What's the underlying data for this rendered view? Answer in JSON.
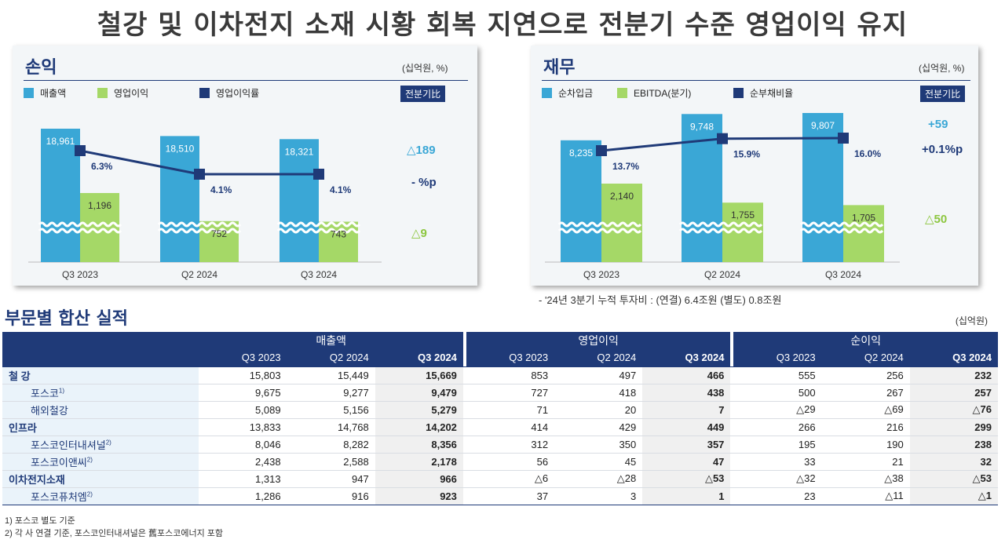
{
  "headline": "철강 및 이차전지 소재 시황 회복 지연으로 전분기 수준 영업이익 유지",
  "left_panel": {
    "title": "손익",
    "unit": "(십억원, %)",
    "badge": "전분기比",
    "legend": [
      "매출액",
      "영업이익",
      "영업이익률"
    ],
    "changes": [
      "△189",
      "- %p",
      "△9"
    ]
  },
  "right_panel": {
    "title": "재무",
    "unit": "(십억원, %)",
    "badge": "전분기比",
    "legend": [
      "순차입금",
      "EBITDA(분기)",
      "순부채비율"
    ],
    "changes": [
      "+59",
      "+0.1%p",
      "△50"
    ],
    "note": "- '24년 3분기 누적 투자비 : (연결) 6.4조원  (별도) 0.8조원"
  },
  "chart_data": [
    {
      "type": "bar",
      "title": "손익",
      "categories": [
        "Q3 2023",
        "Q2 2024",
        "Q3 2024"
      ],
      "series": [
        {
          "name": "매출액",
          "values": [
            18961,
            18510,
            18321
          ],
          "labels": [
            "18,961",
            "18,510",
            "18,321"
          ],
          "color": "#3aa7d6"
        },
        {
          "name": "영업이익",
          "values": [
            1196,
            752,
            743
          ],
          "labels": [
            "1,196",
            "752",
            "743"
          ],
          "color": "#a5d867"
        },
        {
          "name": "영업이익률",
          "values": [
            6.3,
            4.1,
            4.1
          ],
          "labels": [
            "6.3%",
            "4.1%",
            "4.1%"
          ],
          "color": "#1f3a78",
          "kind": "line"
        }
      ],
      "axis_break": true
    },
    {
      "type": "bar",
      "title": "재무",
      "categories": [
        "Q3 2023",
        "Q2 2024",
        "Q3 2024"
      ],
      "series": [
        {
          "name": "순차입금",
          "values": [
            8235,
            9748,
            9807
          ],
          "labels": [
            "8,235",
            "9,748",
            "9,807"
          ],
          "color": "#3aa7d6"
        },
        {
          "name": "EBITDA(분기)",
          "values": [
            2140,
            1755,
            1705
          ],
          "labels": [
            "2,140",
            "1,755",
            "1,705"
          ],
          "color": "#a5d867"
        },
        {
          "name": "순부채비율",
          "values": [
            13.7,
            15.9,
            16.0
          ],
          "labels": [
            "13.7%",
            "15.9%",
            "16.0%"
          ],
          "color": "#1f3a78",
          "kind": "line"
        }
      ],
      "axis_break": true
    }
  ],
  "section": {
    "title": "부문별 합산 실적",
    "unit": "(십억원)"
  },
  "table": {
    "groups": [
      "매출액",
      "영업이익",
      "순이익"
    ],
    "periods": [
      "Q3 2023",
      "Q2 2024",
      "Q3 2024"
    ],
    "rows": [
      {
        "label": "철 강",
        "sup": "",
        "main": true,
        "values": [
          "15,803",
          "15,449",
          "15,669",
          "853",
          "497",
          "466",
          "555",
          "256",
          "232"
        ]
      },
      {
        "label": "포스코",
        "sup": "1)",
        "main": false,
        "values": [
          "9,675",
          "9,277",
          "9,479",
          "727",
          "418",
          "438",
          "500",
          "267",
          "257"
        ]
      },
      {
        "label": "해외철강",
        "sup": "",
        "main": false,
        "values": [
          "5,089",
          "5,156",
          "5,279",
          "71",
          "20",
          "7",
          "△29",
          "△69",
          "△76"
        ]
      },
      {
        "label": "인프라",
        "sup": "",
        "main": true,
        "values": [
          "13,833",
          "14,768",
          "14,202",
          "414",
          "429",
          "449",
          "266",
          "216",
          "299"
        ]
      },
      {
        "label": "포스코인터내셔널",
        "sup": "2)",
        "main": false,
        "values": [
          "8,046",
          "8,282",
          "8,356",
          "312",
          "350",
          "357",
          "195",
          "190",
          "238"
        ]
      },
      {
        "label": "포스코이앤씨",
        "sup": "2)",
        "main": false,
        "values": [
          "2,438",
          "2,588",
          "2,178",
          "56",
          "45",
          "47",
          "33",
          "21",
          "32"
        ]
      },
      {
        "label": "이차전지소재",
        "sup": "",
        "main": true,
        "values": [
          "1,313",
          "947",
          "966",
          "△6",
          "△28",
          "△53",
          "△32",
          "△38",
          "△53"
        ]
      },
      {
        "label": "포스코퓨처엠",
        "sup": "2)",
        "main": false,
        "values": [
          "1,286",
          "916",
          "923",
          "37",
          "3",
          "1",
          "23",
          "△11",
          "△1"
        ]
      }
    ]
  },
  "footnotes": [
    "1) 포스코 별도 기준",
    "2) 각 사 연결 기준, 포스코인터내셔널은 舊포스코에너지 포함"
  ]
}
